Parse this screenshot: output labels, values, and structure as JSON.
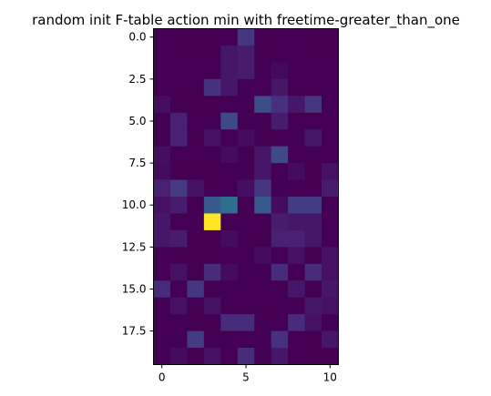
{
  "chart_data": {
    "type": "heatmap",
    "title": "random init F-table action min with freetime-greater_than_one",
    "xlabel": "",
    "ylabel": "",
    "colormap": "viridis",
    "value_range": [
      0,
      1
    ],
    "x_range": [
      -0.5,
      10.5
    ],
    "y_range": [
      -0.5,
      19.5
    ],
    "y_axis_inverted": true,
    "x_ticks": [
      0,
      5,
      10
    ],
    "x_tick_labels": [
      "0",
      "5",
      "10"
    ],
    "y_ticks": [
      0.0,
      2.5,
      5.0,
      7.5,
      10.0,
      12.5,
      15.0,
      17.5
    ],
    "y_tick_labels": [
      "0.0",
      "2.5",
      "5.0",
      "7.5",
      "10.0",
      "12.5",
      "15.0",
      "17.5"
    ],
    "matrix": [
      [
        0.0,
        0.0,
        0.0,
        0.0,
        0.0,
        0.2,
        0.0,
        0.0,
        0.0,
        0.0,
        0.0
      ],
      [
        0.0,
        0.0,
        0.0,
        0.0,
        0.08,
        0.1,
        0.0,
        0.0,
        0.0,
        0.0,
        0.0
      ],
      [
        0.0,
        0.0,
        0.0,
        0.0,
        0.08,
        0.1,
        0.0,
        0.03,
        0.0,
        0.0,
        0.0
      ],
      [
        0.0,
        0.0,
        0.0,
        0.18,
        0.08,
        0.0,
        0.0,
        0.08,
        0.0,
        0.0,
        0.0
      ],
      [
        0.05,
        0.0,
        0.0,
        0.0,
        0.0,
        0.0,
        0.3,
        0.18,
        0.08,
        0.2,
        0.0
      ],
      [
        0.0,
        0.12,
        0.0,
        0.0,
        0.28,
        0.0,
        0.0,
        0.1,
        0.0,
        0.0,
        0.0
      ],
      [
        0.0,
        0.12,
        0.0,
        0.06,
        0.0,
        0.04,
        0.0,
        0.0,
        0.0,
        0.08,
        0.0
      ],
      [
        0.05,
        0.0,
        0.0,
        0.0,
        0.04,
        0.0,
        0.08,
        0.28,
        0.0,
        0.0,
        0.0
      ],
      [
        0.04,
        0.0,
        0.0,
        0.0,
        0.0,
        0.0,
        0.08,
        0.0,
        0.04,
        0.0,
        0.06
      ],
      [
        0.12,
        0.22,
        0.06,
        0.0,
        0.0,
        0.05,
        0.2,
        0.0,
        0.0,
        0.0,
        0.1
      ],
      [
        0.06,
        0.1,
        0.0,
        0.35,
        0.45,
        0.0,
        0.35,
        0.04,
        0.22,
        0.22,
        0.0
      ],
      [
        0.08,
        0.0,
        0.0,
        1.0,
        0.0,
        0.0,
        0.0,
        0.1,
        0.08,
        0.08,
        0.0
      ],
      [
        0.08,
        0.1,
        0.0,
        0.0,
        0.04,
        0.0,
        0.0,
        0.12,
        0.12,
        0.08,
        0.0
      ],
      [
        0.0,
        0.0,
        0.0,
        0.0,
        0.0,
        0.0,
        0.04,
        0.0,
        0.06,
        0.0,
        0.06
      ],
      [
        0.0,
        0.06,
        0.0,
        0.16,
        0.04,
        0.0,
        0.0,
        0.16,
        0.0,
        0.16,
        0.06
      ],
      [
        0.16,
        0.0,
        0.2,
        0.0,
        0.0,
        0.0,
        0.0,
        0.0,
        0.08,
        0.0,
        0.08
      ],
      [
        0.0,
        0.06,
        0.0,
        0.06,
        0.0,
        0.0,
        0.0,
        0.0,
        0.0,
        0.08,
        0.06
      ],
      [
        0.0,
        0.0,
        0.0,
        0.0,
        0.16,
        0.16,
        0.0,
        0.0,
        0.16,
        0.06,
        0.0
      ],
      [
        0.0,
        0.0,
        0.22,
        0.0,
        0.0,
        0.0,
        0.0,
        0.18,
        0.0,
        0.0,
        0.08
      ],
      [
        0.0,
        0.04,
        0.0,
        0.06,
        0.0,
        0.16,
        0.0,
        0.08,
        0.0,
        0.0,
        0.0
      ]
    ]
  }
}
